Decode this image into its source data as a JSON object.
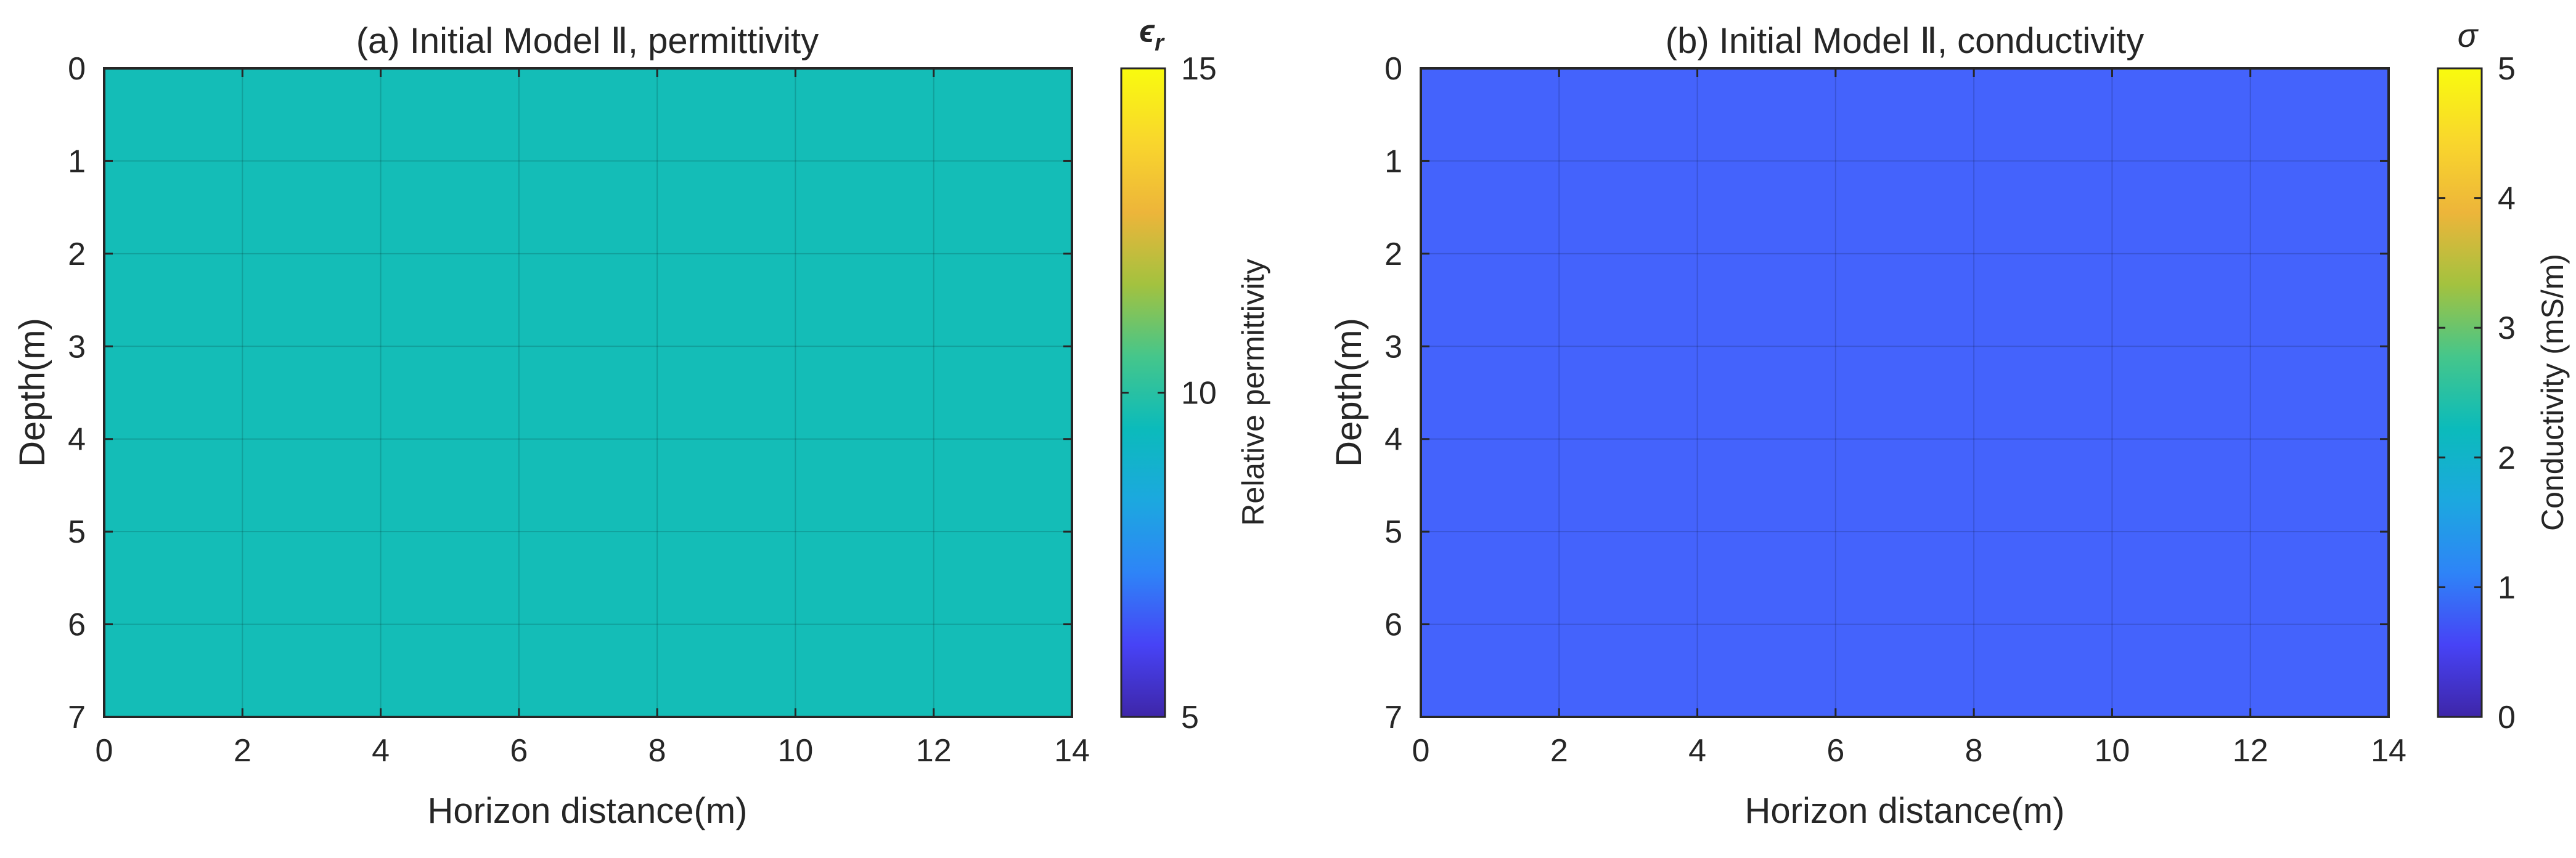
{
  "chart_data": [
    {
      "type": "heatmap",
      "title": "(a) Initial Model Ⅱ, permittivity",
      "xlabel": "Horizon distance(m)",
      "ylabel": "Depth(m)",
      "xlim": [
        0,
        14
      ],
      "ylim": [
        0,
        7
      ],
      "y_reversed": true,
      "x_ticks": [
        0,
        2,
        4,
        6,
        8,
        10,
        12,
        14
      ],
      "y_ticks": [
        0,
        1,
        2,
        3,
        4,
        5,
        6,
        7
      ],
      "grid": true,
      "field_value": 10,
      "field_color": "#14bdb7",
      "colorbar": {
        "symbol": "ϵ",
        "symbol_sub": "r",
        "label": "Relative permittivity",
        "range": [
          5,
          15
        ],
        "ticks": [
          5,
          10,
          15
        ]
      }
    },
    {
      "type": "heatmap",
      "title": "(b) Initial Model Ⅱ, conductivity",
      "xlabel": "Horizon distance(m)",
      "ylabel": "Depth(m)",
      "xlim": [
        0,
        14
      ],
      "ylim": [
        0,
        7
      ],
      "y_reversed": true,
      "x_ticks": [
        0,
        2,
        4,
        6,
        8,
        10,
        12,
        14
      ],
      "y_ticks": [
        0,
        1,
        2,
        3,
        4,
        5,
        6,
        7
      ],
      "grid": true,
      "field_value": 1,
      "field_color": "#4463fc",
      "colorbar": {
        "symbol": "σ",
        "symbol_sub": "",
        "label": "Conductivity (mS/m)",
        "range": [
          0,
          5
        ],
        "ticks": [
          0,
          1,
          2,
          3,
          4,
          5
        ]
      }
    }
  ],
  "colormap": [
    "#3e26a8",
    "#4743f6",
    "#2e84f7",
    "#1ca8df",
    "#0bbbbb",
    "#45c68b",
    "#a3c23f",
    "#edb53a",
    "#f9d72c",
    "#f9fb0e"
  ]
}
